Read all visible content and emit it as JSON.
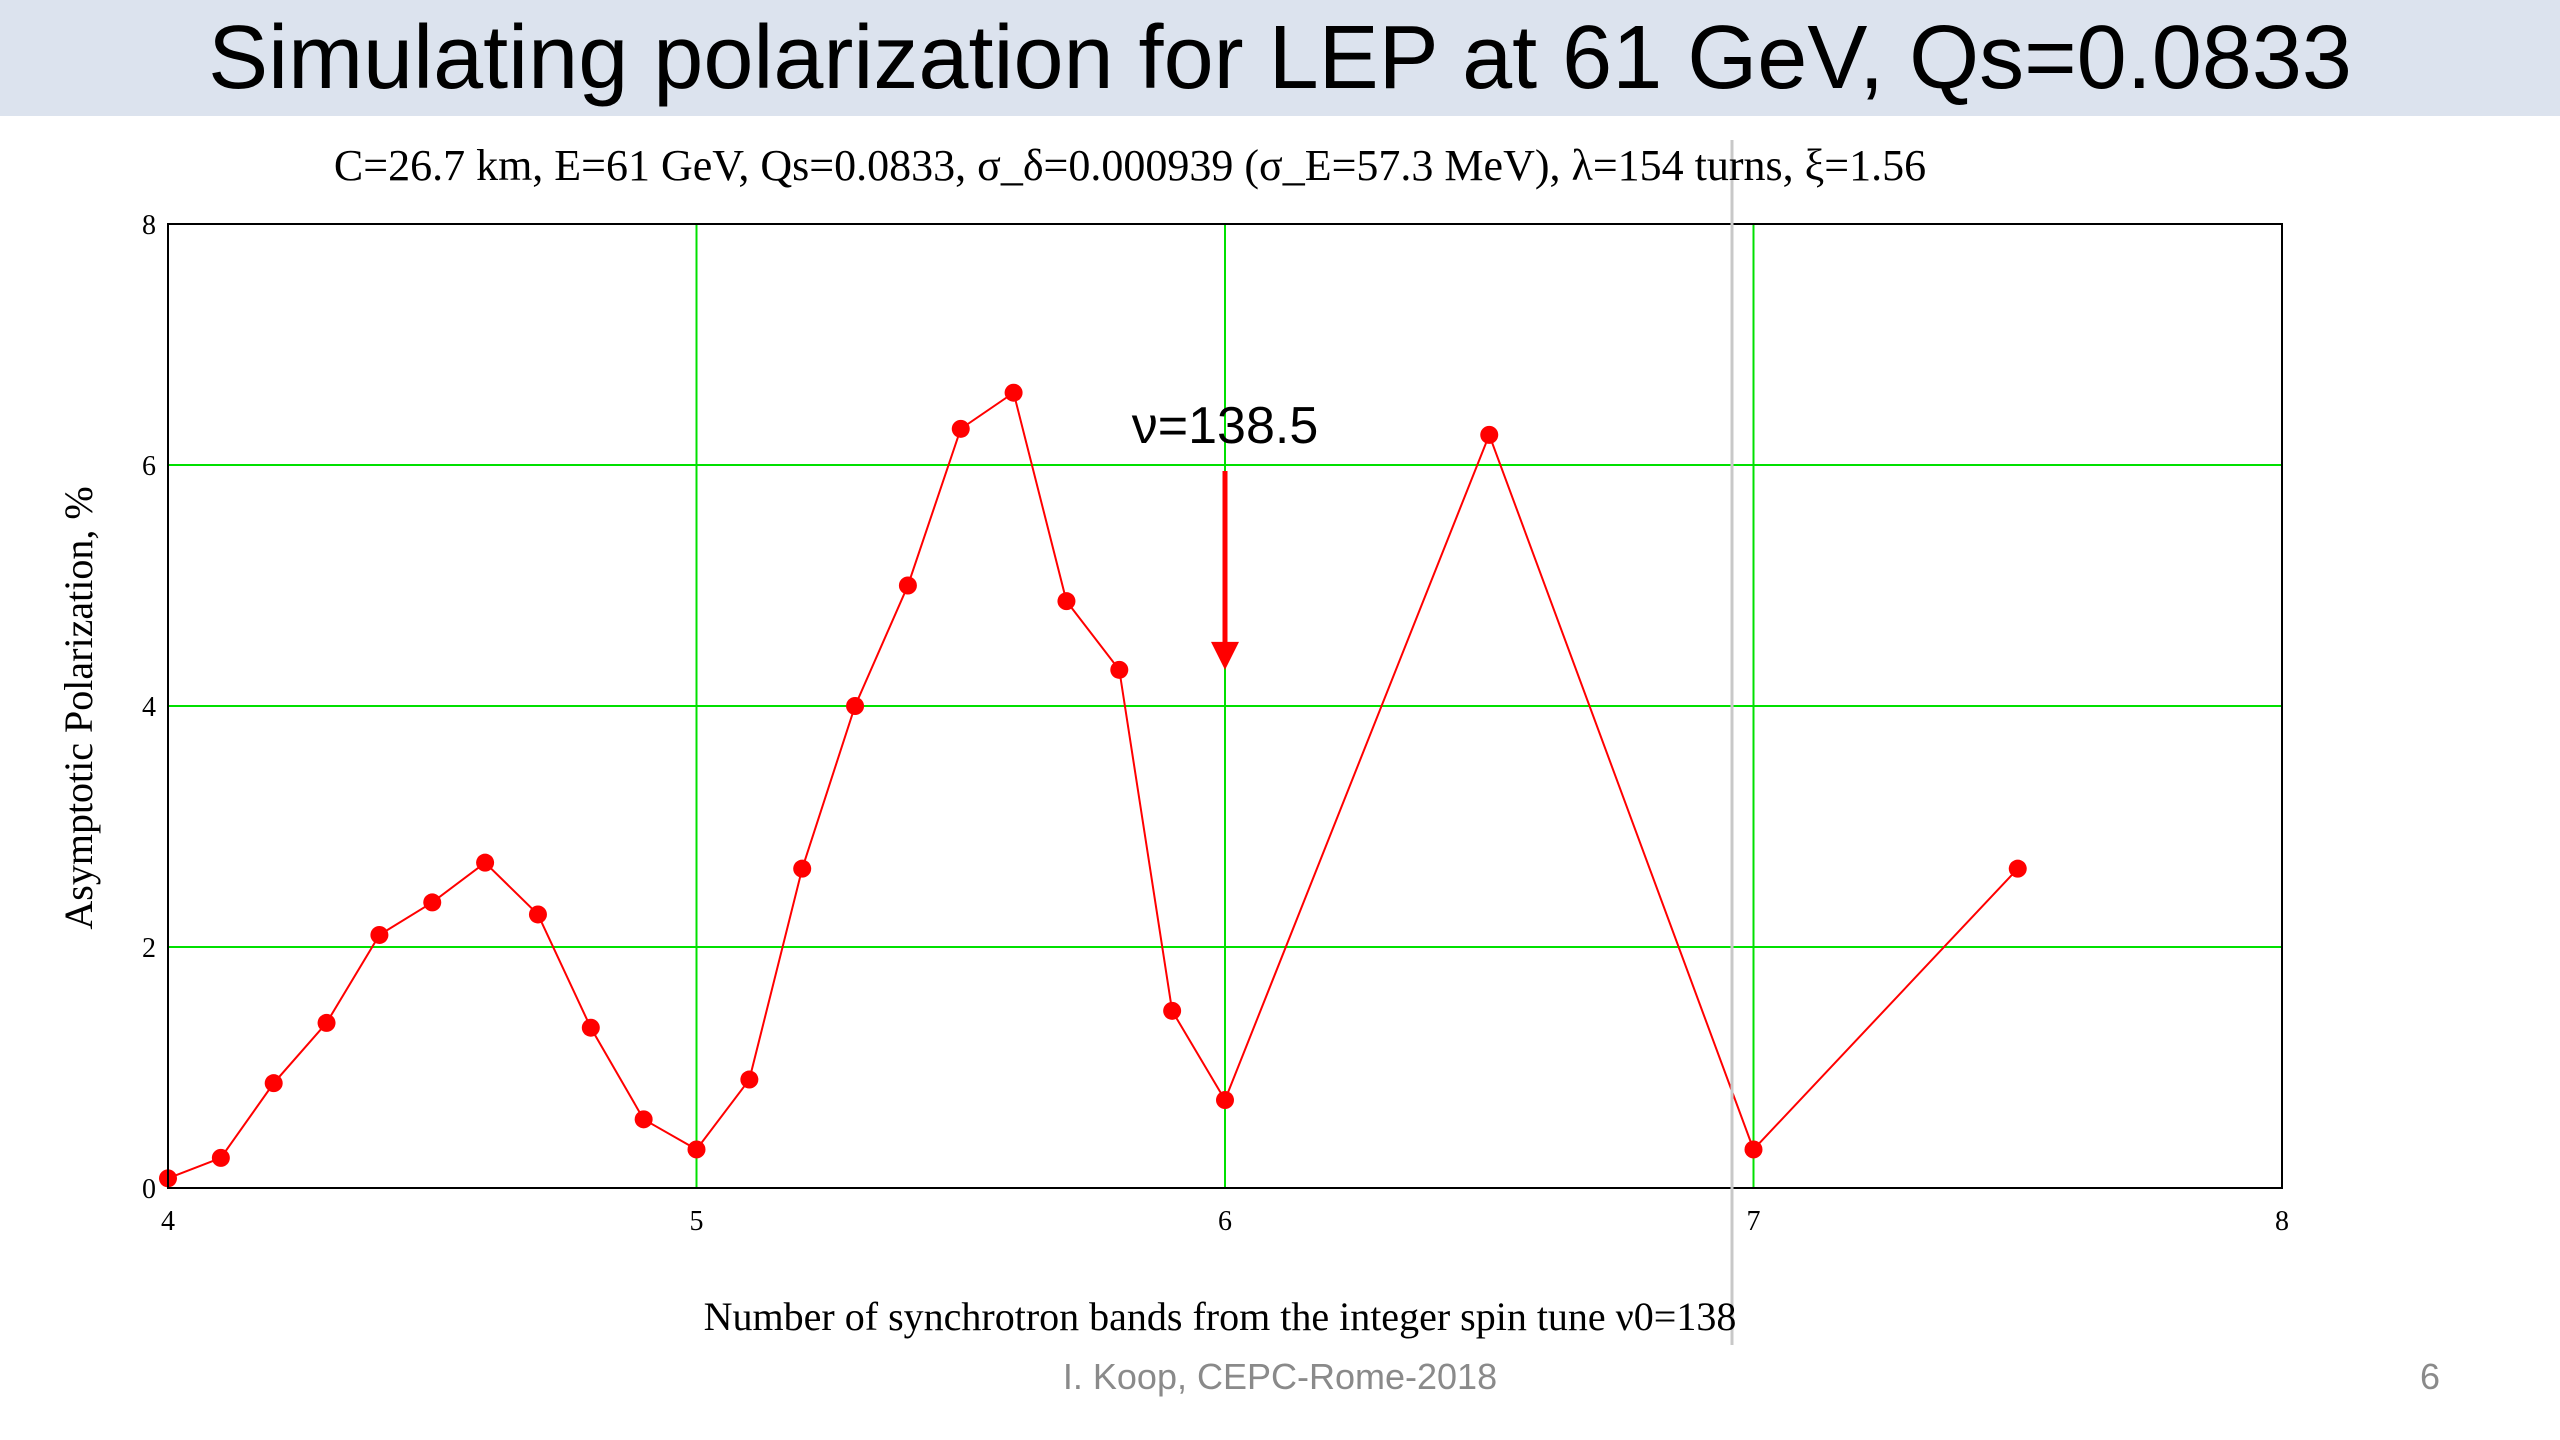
{
  "slide": {
    "title": "Simulating polarization for LEP at 61 GeV, Qs=0.0833",
    "footer": "I. Koop, CEPC-Rome-2018",
    "page_number": "6"
  },
  "colors": {
    "title_bar": "#dce3ee",
    "grid": "#00e000",
    "series": "#ff0000",
    "annotation_arrow": "#ff0000",
    "footer_text": "#8a8a8a"
  },
  "chart_data": {
    "type": "line",
    "title": "C=26.7 km,  E=61 GeV,  Qs=0.0833,  σ_δ=0.000939 (σ_E=57.3 MeV), λ=154 turns, ξ=1.56",
    "xlabel": "Number of synchrotron bands from the integer spin tune ν0=138",
    "ylabel": "Asymptotic Polarization, %",
    "xlim": [
      4,
      8
    ],
    "ylim": [
      0,
      8
    ],
    "x_ticks": [
      "4",
      "5",
      "6",
      "7",
      "8"
    ],
    "y_ticks": [
      "0",
      "2",
      "4",
      "6",
      "8"
    ],
    "grid": true,
    "legend": "none",
    "series": [
      {
        "x": [
          4.0,
          4.1,
          4.2,
          4.3,
          4.4,
          4.5,
          4.6,
          4.7,
          4.8,
          4.9,
          5.0,
          5.1,
          5.2,
          5.3,
          5.4,
          5.5,
          5.6,
          5.7,
          5.8,
          5.9,
          6.0,
          6.5,
          7.0,
          7.5
        ],
        "y": [
          0.08,
          0.25,
          0.87,
          1.37,
          2.1,
          2.37,
          2.7,
          2.27,
          1.33,
          0.57,
          0.32,
          0.9,
          2.65,
          4.0,
          5.0,
          6.3,
          6.6,
          4.87,
          4.3,
          1.47,
          0.73,
          6.25,
          0.32,
          2.65
        ]
      }
    ],
    "annotation": {
      "text": "ν=138.5",
      "x": 6.0,
      "arrow_from_y": 5.95,
      "arrow_to_y": 4.3
    }
  }
}
